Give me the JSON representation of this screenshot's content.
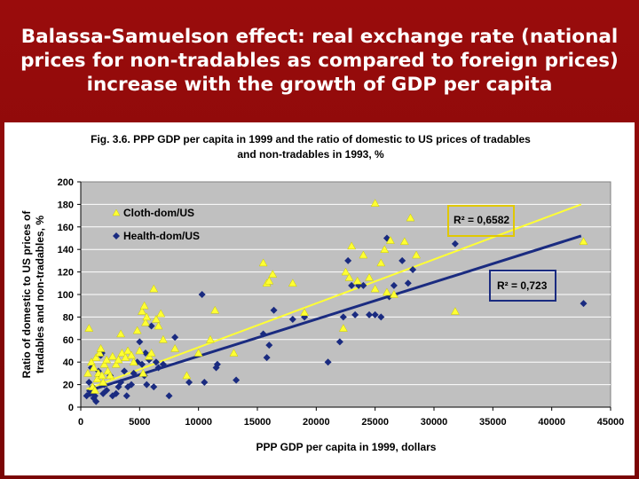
{
  "slide": {
    "title_lines": [
      "Balassa-Samuelson effect: real exchange rate (national",
      "prices for non-tradables as compared to foreign prices)",
      "increase with the growth of GDP per capita"
    ]
  },
  "colors": {
    "background": "#8b0a0a",
    "plot_area": "#c0c0c0",
    "cloth": "#ffff33",
    "health": "#1a2b80",
    "cloth_box": "#e0c800"
  },
  "chart_data": {
    "type": "scatter",
    "title_lines": [
      "Fig. 3.6. PPP GDP per capita in 1999 and the ratio of domestic to US prices of tradables",
      "and non-tradables in 1993, %"
    ],
    "xlabel": "PPP GDP per capita in 1999, dollars",
    "ylabel_lines": [
      "Ratio of domestic to US prices of",
      "tradables and non-tradables, %"
    ],
    "xlim": [
      0,
      45000
    ],
    "ylim": [
      0,
      200
    ],
    "xticks": [
      "0",
      "5000",
      "10000",
      "15000",
      "20000",
      "25000",
      "30000",
      "35000",
      "40000",
      "45000"
    ],
    "yticks": [
      "0",
      "20",
      "40",
      "60",
      "80",
      "100",
      "120",
      "140",
      "160",
      "180",
      "200"
    ],
    "grid": "horizontal",
    "legend_position": "top-left",
    "series": [
      {
        "name": "Cloth-dom/US",
        "marker": "triangle",
        "trend": {
          "r2_label": "R² = 0,6582",
          "x": [
            500,
            42500
          ],
          "y": [
            16,
            180
          ]
        },
        "points": [
          [
            600,
            30
          ],
          [
            700,
            70
          ],
          [
            900,
            40
          ],
          [
            1000,
            18
          ],
          [
            1100,
            35
          ],
          [
            1200,
            15
          ],
          [
            1300,
            44
          ],
          [
            1400,
            25
          ],
          [
            1500,
            30
          ],
          [
            1600,
            48
          ],
          [
            1700,
            52
          ],
          [
            1800,
            28
          ],
          [
            1900,
            22
          ],
          [
            2000,
            38
          ],
          [
            2200,
            42
          ],
          [
            2300,
            32
          ],
          [
            2500,
            28
          ],
          [
            2700,
            45
          ],
          [
            3000,
            38
          ],
          [
            3200,
            42
          ],
          [
            3400,
            65
          ],
          [
            3500,
            48
          ],
          [
            3800,
            44
          ],
          [
            4000,
            50
          ],
          [
            4300,
            46
          ],
          [
            4500,
            40
          ],
          [
            4800,
            68
          ],
          [
            5000,
            50
          ],
          [
            5200,
            85
          ],
          [
            5300,
            30
          ],
          [
            5400,
            90
          ],
          [
            5500,
            75
          ],
          [
            5600,
            80
          ],
          [
            5800,
            45
          ],
          [
            6000,
            48
          ],
          [
            6200,
            105
          ],
          [
            6400,
            78
          ],
          [
            6600,
            72
          ],
          [
            6800,
            83
          ],
          [
            7000,
            60
          ],
          [
            8000,
            52
          ],
          [
            9000,
            28
          ],
          [
            10000,
            48
          ],
          [
            11000,
            60
          ],
          [
            11400,
            86
          ],
          [
            13000,
            48
          ],
          [
            15500,
            128
          ],
          [
            15800,
            110
          ],
          [
            16000,
            112
          ],
          [
            16300,
            118
          ],
          [
            18000,
            110
          ],
          [
            19000,
            84
          ],
          [
            22300,
            70
          ],
          [
            22500,
            120
          ],
          [
            22800,
            115
          ],
          [
            23000,
            143
          ],
          [
            23500,
            112
          ],
          [
            24000,
            135
          ],
          [
            24500,
            115
          ],
          [
            25000,
            105
          ],
          [
            25000,
            181
          ],
          [
            25500,
            128
          ],
          [
            25800,
            140
          ],
          [
            26000,
            102
          ],
          [
            26300,
            148
          ],
          [
            26600,
            100
          ],
          [
            27500,
            147
          ],
          [
            28000,
            168
          ],
          [
            28500,
            135
          ],
          [
            31800,
            85
          ],
          [
            42700,
            147
          ]
        ]
      },
      {
        "name": "Health-dom/US",
        "marker": "diamond",
        "trend": {
          "r2_label": "R² = 0,723",
          "x": [
            500,
            42500
          ],
          "y": [
            14,
            152
          ]
        },
        "points": [
          [
            500,
            10
          ],
          [
            700,
            22
          ],
          [
            800,
            12
          ],
          [
            900,
            35
          ],
          [
            1000,
            18
          ],
          [
            1100,
            8
          ],
          [
            1200,
            10
          ],
          [
            1300,
            5
          ],
          [
            1500,
            32
          ],
          [
            1600,
            28
          ],
          [
            1700,
            46
          ],
          [
            1800,
            48
          ],
          [
            1900,
            12
          ],
          [
            2000,
            20
          ],
          [
            2200,
            15
          ],
          [
            2500,
            28
          ],
          [
            2700,
            10
          ],
          [
            3000,
            12
          ],
          [
            3200,
            18
          ],
          [
            3400,
            22
          ],
          [
            3700,
            32
          ],
          [
            3900,
            10
          ],
          [
            4000,
            18
          ],
          [
            4300,
            20
          ],
          [
            4500,
            30
          ],
          [
            4800,
            40
          ],
          [
            5000,
            58
          ],
          [
            5200,
            38
          ],
          [
            5400,
            28
          ],
          [
            5500,
            48
          ],
          [
            5600,
            20
          ],
          [
            5800,
            42
          ],
          [
            6000,
            72
          ],
          [
            6200,
            18
          ],
          [
            6400,
            40
          ],
          [
            6600,
            35
          ],
          [
            7000,
            38
          ],
          [
            7500,
            10
          ],
          [
            8000,
            62
          ],
          [
            9200,
            22
          ],
          [
            10300,
            100
          ],
          [
            10500,
            22
          ],
          [
            11500,
            35
          ],
          [
            11600,
            38
          ],
          [
            13200,
            24
          ],
          [
            15500,
            65
          ],
          [
            15800,
            44
          ],
          [
            16000,
            55
          ],
          [
            16400,
            86
          ],
          [
            18000,
            78
          ],
          [
            19000,
            80
          ],
          [
            21000,
            40
          ],
          [
            22000,
            58
          ],
          [
            22300,
            80
          ],
          [
            22700,
            130
          ],
          [
            23000,
            108
          ],
          [
            23300,
            82
          ],
          [
            23600,
            108
          ],
          [
            24000,
            108
          ],
          [
            24500,
            82
          ],
          [
            25000,
            82
          ],
          [
            25500,
            80
          ],
          [
            26000,
            150
          ],
          [
            26200,
            98
          ],
          [
            26600,
            108
          ],
          [
            27300,
            130
          ],
          [
            27800,
            110
          ],
          [
            28200,
            122
          ],
          [
            31800,
            145
          ],
          [
            42700,
            92
          ]
        ]
      }
    ]
  }
}
